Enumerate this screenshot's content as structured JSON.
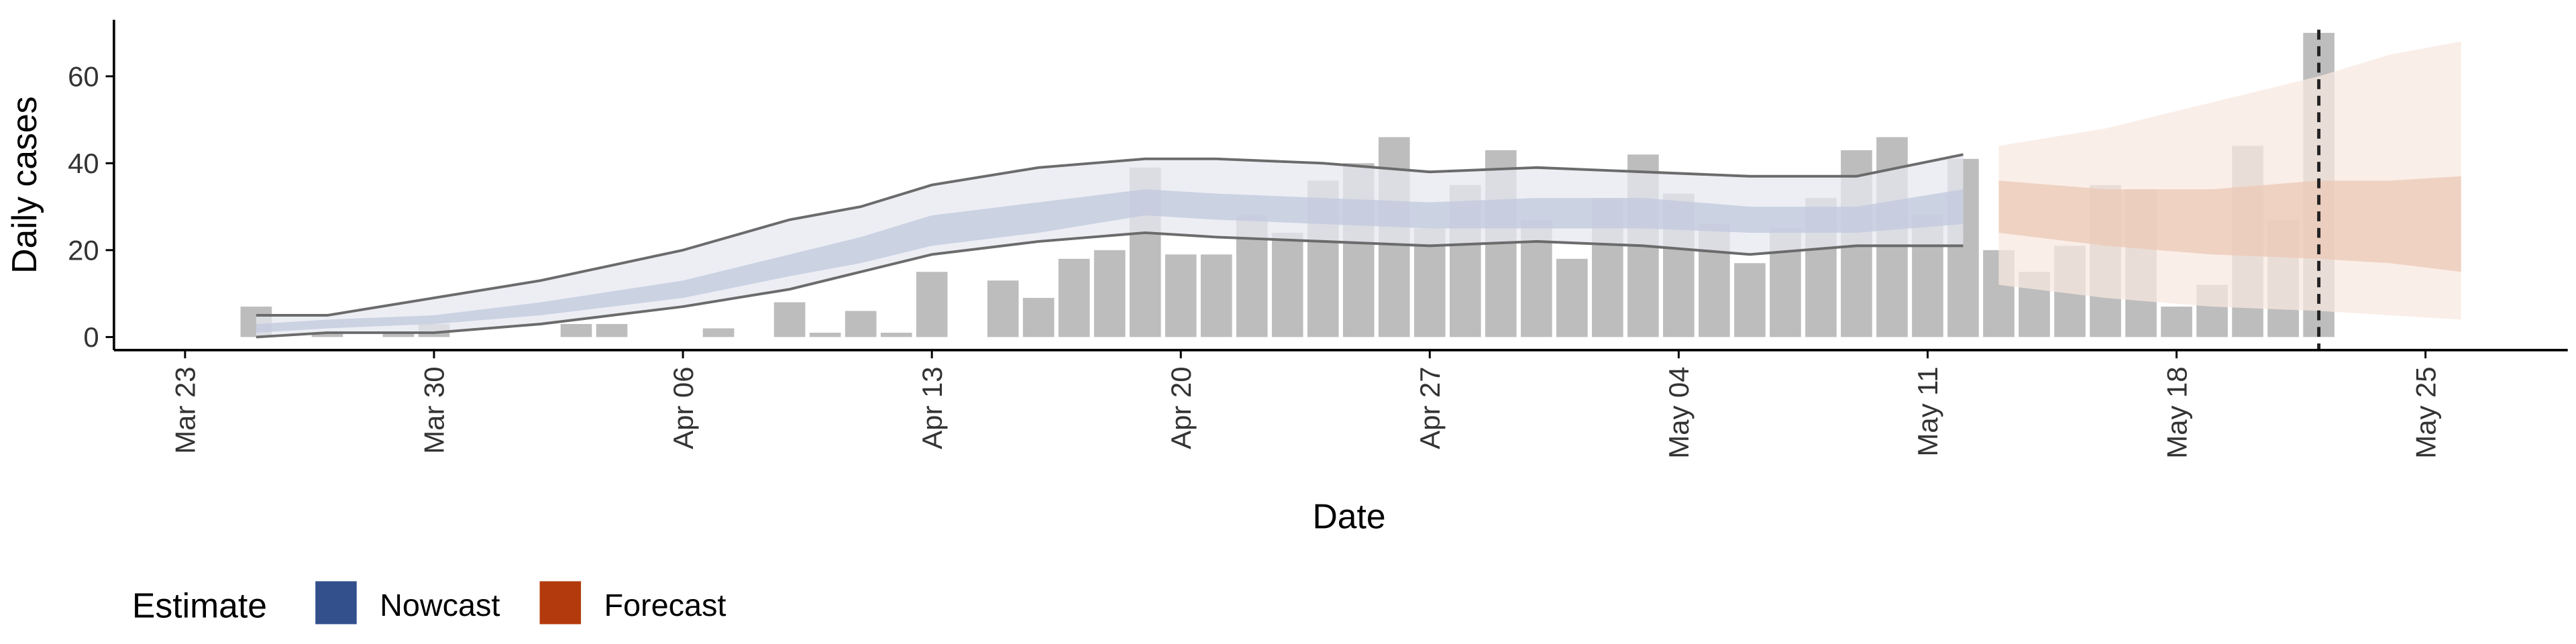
{
  "chart_data": {
    "type": "bar",
    "x_label": "Date",
    "y_label": "Daily cases",
    "legend_title": "Estimate",
    "x": [
      "Mar 25",
      "Mar 26",
      "Mar 27",
      "Mar 28",
      "Mar 29",
      "Mar 30",
      "Mar 31",
      "Apr 01",
      "Apr 02",
      "Apr 03",
      "Apr 04",
      "Apr 05",
      "Apr 06",
      "Apr 07",
      "Apr 08",
      "Apr 09",
      "Apr 10",
      "Apr 11",
      "Apr 12",
      "Apr 13",
      "Apr 14",
      "Apr 15",
      "Apr 16",
      "Apr 17",
      "Apr 18",
      "Apr 19",
      "Apr 20",
      "Apr 21",
      "Apr 22",
      "Apr 23",
      "Apr 24",
      "Apr 25",
      "Apr 26",
      "Apr 27",
      "Apr 28",
      "Apr 29",
      "Apr 30",
      "May 01",
      "May 02",
      "May 03",
      "May 04",
      "May 05",
      "May 06",
      "May 07",
      "May 08",
      "May 09",
      "May 10",
      "May 11",
      "May 12",
      "May 13",
      "May 14",
      "May 15",
      "May 16",
      "May 17",
      "May 18",
      "May 19",
      "May 20",
      "May 21",
      "May 22"
    ],
    "values": [
      7,
      0,
      1,
      0,
      1,
      3,
      0,
      0,
      0,
      3,
      3,
      0,
      0,
      2,
      0,
      8,
      1,
      6,
      1,
      15,
      0,
      13,
      9,
      18,
      20,
      39,
      19,
      19,
      28,
      24,
      36,
      40,
      46,
      25,
      35,
      43,
      27,
      18,
      32,
      42,
      33,
      26,
      17,
      25,
      32,
      43,
      46,
      28,
      41,
      20,
      15,
      21,
      35,
      34,
      7,
      12,
      44,
      27,
      70
    ],
    "color": "#bdbdbd",
    "vline": "May 22",
    "series": [
      {
        "name": "Nowcast",
        "color": "#334f8c",
        "x": [
          "Mar 25",
          "Mar 27",
          "Mar 30",
          "Apr 02",
          "Apr 06",
          "Apr 09",
          "Apr 11",
          "Apr 13",
          "Apr 16",
          "Apr 19",
          "Apr 21",
          "Apr 24",
          "Apr 27",
          "Apr 30",
          "May 03",
          "May 06",
          "May 09",
          "May 12"
        ],
        "upper_90": [
          5,
          5,
          9,
          13,
          20,
          27,
          30,
          35,
          39,
          41,
          41,
          40,
          38,
          39,
          38,
          37,
          37,
          42
        ],
        "lower_90": [
          0,
          1,
          1,
          3,
          7,
          11,
          15,
          19,
          22,
          24,
          23,
          22,
          21,
          22,
          21,
          19,
          21,
          21
        ],
        "upper_50": [
          3,
          4,
          5,
          8,
          13,
          19,
          23,
          28,
          31,
          34,
          33,
          32,
          31,
          32,
          32,
          30,
          30,
          34
        ],
        "lower_50": [
          1,
          2,
          3,
          5,
          9,
          14,
          17,
          21,
          24,
          28,
          27,
          26,
          25,
          25,
          25,
          24,
          24,
          26
        ]
      },
      {
        "name": "Forecast",
        "color": "#b33a0d",
        "x": [
          "May 13",
          "May 16",
          "May 19",
          "May 22",
          "May 24",
          "May 26"
        ],
        "upper_90": [
          44,
          48,
          54,
          60,
          65,
          68
        ],
        "lower_90": [
          12,
          9,
          7,
          6,
          5,
          4
        ],
        "upper_50": [
          36,
          34,
          34,
          36,
          36,
          37
        ],
        "lower_50": [
          24,
          21,
          19,
          18,
          17,
          15
        ]
      }
    ],
    "xlim": [
      "Mar 21",
      "May 29"
    ],
    "xticks": [
      "Mar 23",
      "Mar 30",
      "Apr 06",
      "Apr 13",
      "Apr 20",
      "Apr 27",
      "May 04",
      "May 11",
      "May 18",
      "May 25"
    ],
    "ylim": [
      -3,
      73
    ],
    "yticks": [
      0,
      20,
      40,
      60
    ]
  }
}
